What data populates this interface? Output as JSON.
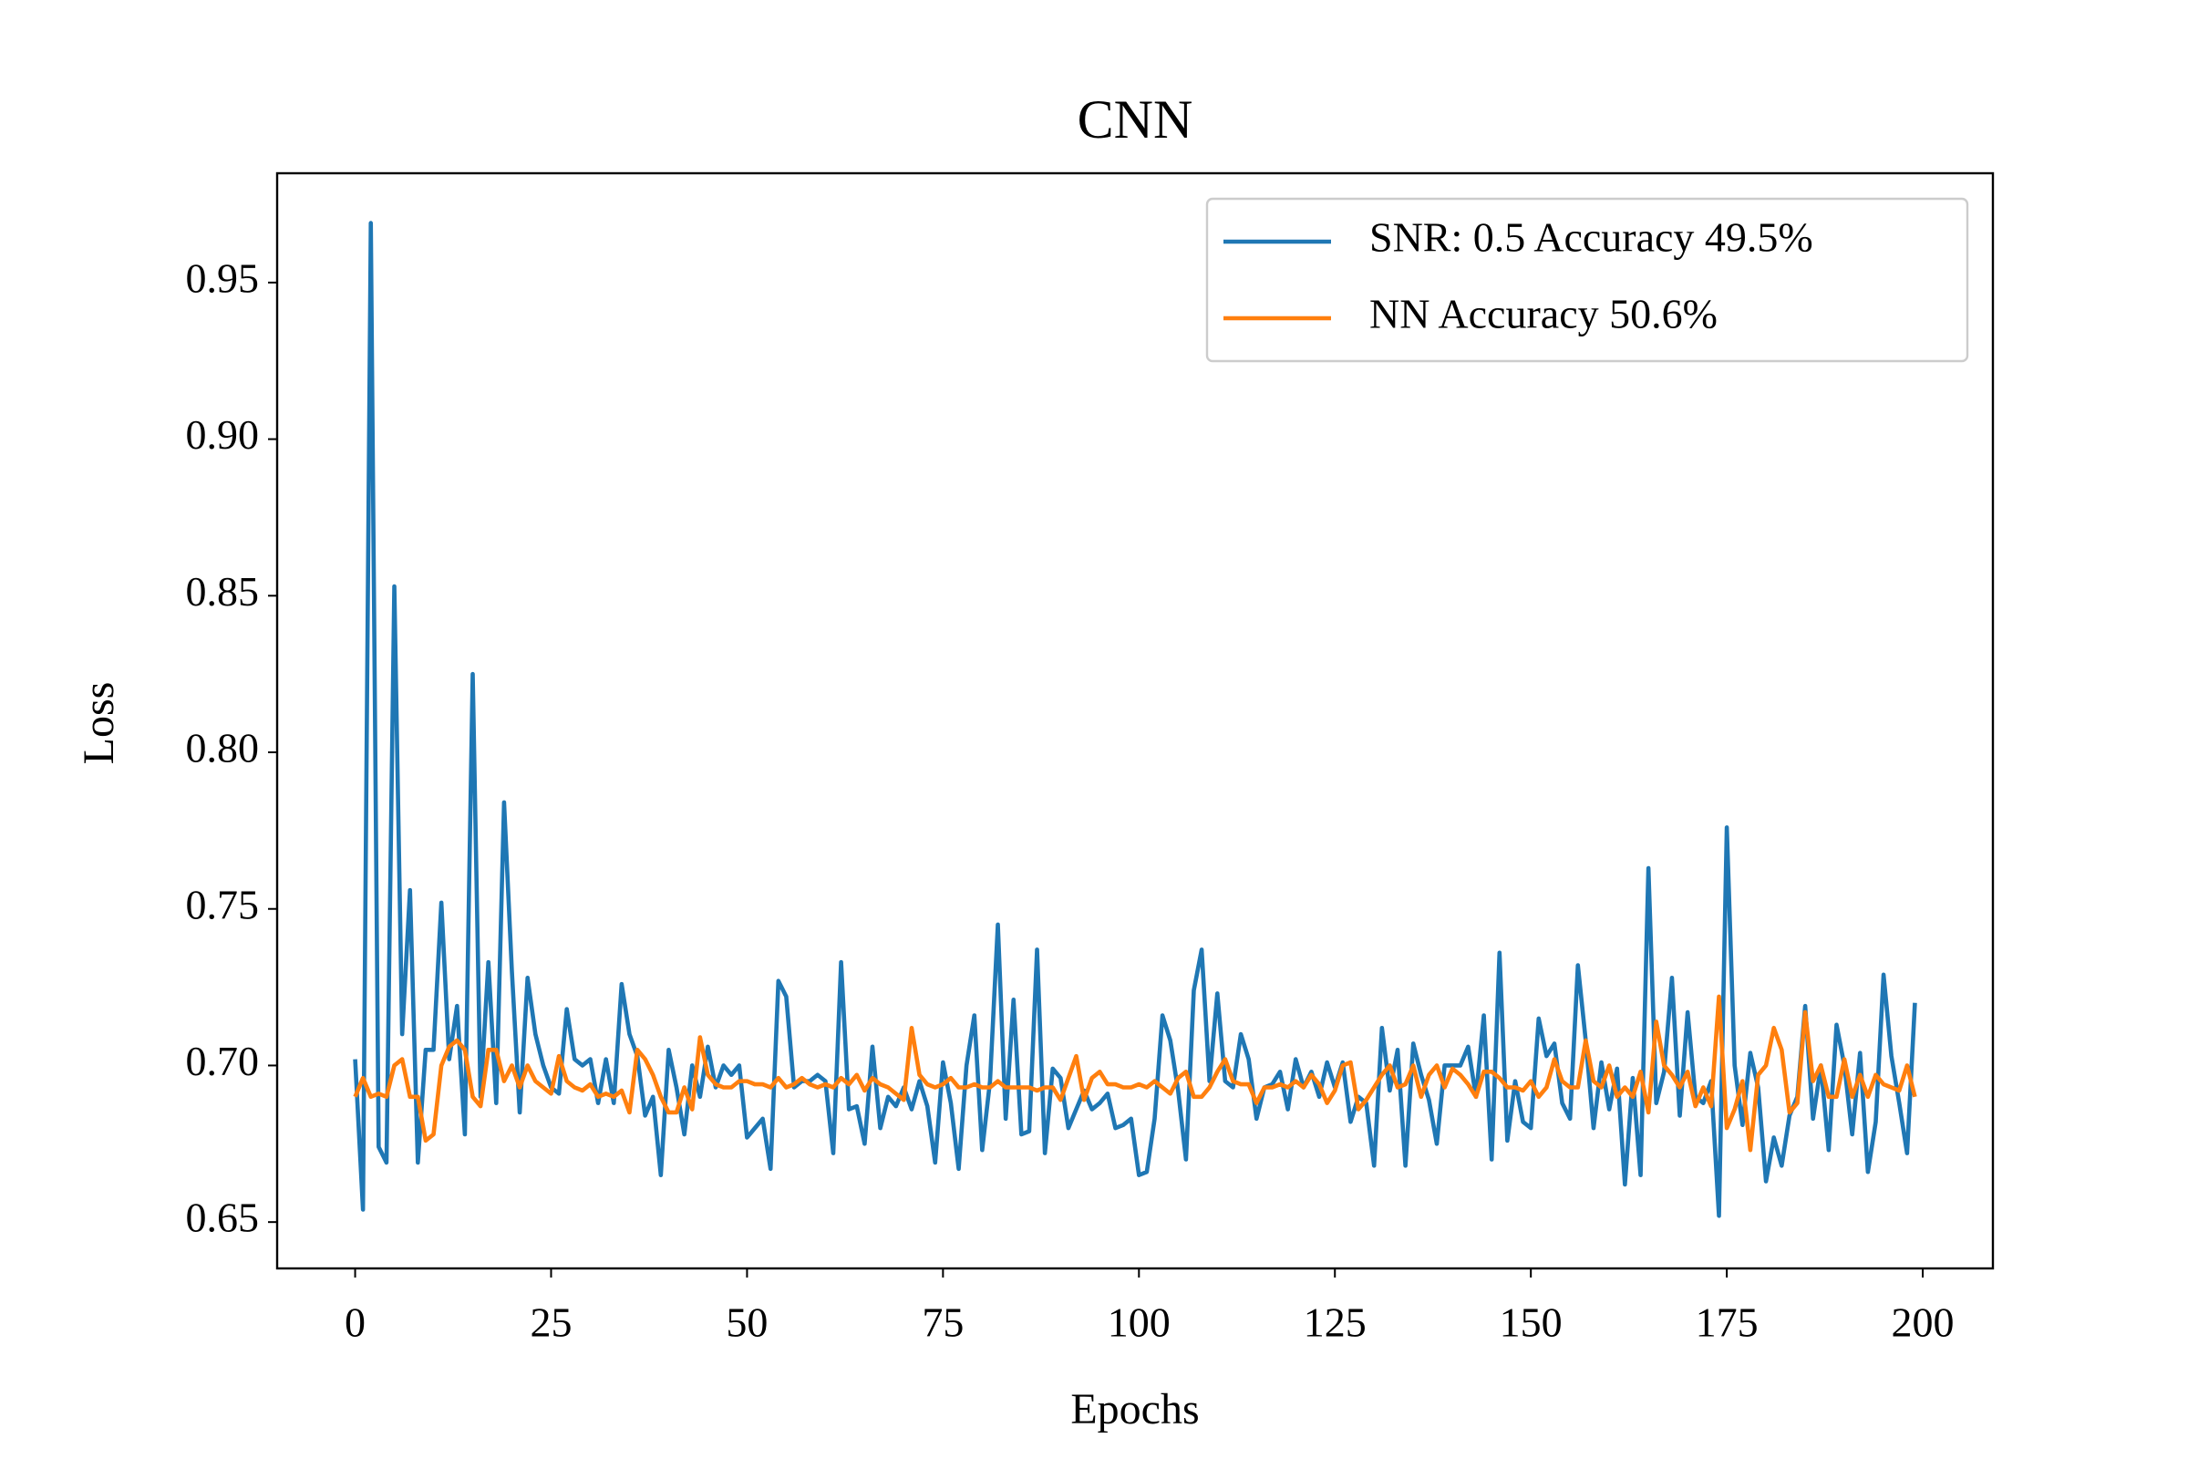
{
  "chart_data": {
    "type": "line",
    "title": "CNN",
    "x_label": "Epochs",
    "y_label": "Loss",
    "x": [
      0,
      1,
      2,
      3,
      4,
      5,
      6,
      7,
      8,
      9,
      10,
      11,
      12,
      13,
      14,
      15,
      16,
      17,
      18,
      19,
      20,
      21,
      22,
      23,
      24,
      25,
      26,
      27,
      28,
      29,
      30,
      31,
      32,
      33,
      34,
      35,
      36,
      37,
      38,
      39,
      40,
      41,
      42,
      43,
      44,
      45,
      46,
      47,
      48,
      49,
      50,
      51,
      52,
      53,
      54,
      55,
      56,
      57,
      58,
      59,
      60,
      61,
      62,
      63,
      64,
      65,
      66,
      67,
      68,
      69,
      70,
      71,
      72,
      73,
      74,
      75,
      76,
      77,
      78,
      79,
      80,
      81,
      82,
      83,
      84,
      85,
      86,
      87,
      88,
      89,
      90,
      91,
      92,
      93,
      94,
      95,
      96,
      97,
      98,
      99,
      100,
      101,
      102,
      103,
      104,
      105,
      106,
      107,
      108,
      109,
      110,
      111,
      112,
      113,
      114,
      115,
      116,
      117,
      118,
      119,
      120,
      121,
      122,
      123,
      124,
      125,
      126,
      127,
      128,
      129,
      130,
      131,
      132,
      133,
      134,
      135,
      136,
      137,
      138,
      139,
      140,
      141,
      142,
      143,
      144,
      145,
      146,
      147,
      148,
      149,
      150,
      151,
      152,
      153,
      154,
      155,
      156,
      157,
      158,
      159,
      160,
      161,
      162,
      163,
      164,
      165,
      166,
      167,
      168,
      169,
      170,
      171,
      172,
      173,
      174,
      175,
      176,
      177,
      178,
      179,
      180,
      181,
      182,
      183,
      184,
      185,
      186,
      187,
      188,
      189,
      190,
      191,
      192,
      193,
      194,
      195,
      196,
      197,
      198,
      199
    ],
    "series": [
      {
        "name": "SNR: 0.5 Accuracy 49.5%",
        "color": "#1f77b4",
        "values": [
          0.702,
          0.654,
          0.969,
          0.674,
          0.669,
          0.853,
          0.71,
          0.756,
          0.669,
          0.705,
          0.705,
          0.752,
          0.702,
          0.719,
          0.678,
          0.825,
          0.69,
          0.733,
          0.688,
          0.784,
          0.73,
          0.685,
          0.728,
          0.71,
          0.7,
          0.693,
          0.691,
          0.718,
          0.702,
          0.7,
          0.702,
          0.688,
          0.702,
          0.688,
          0.726,
          0.71,
          0.703,
          0.684,
          0.69,
          0.665,
          0.705,
          0.693,
          0.678,
          0.7,
          0.69,
          0.706,
          0.693,
          0.7,
          0.697,
          0.7,
          0.677,
          0.68,
          0.683,
          0.667,
          0.727,
          0.722,
          0.693,
          0.695,
          0.695,
          0.697,
          0.695,
          0.672,
          0.733,
          0.686,
          0.687,
          0.675,
          0.706,
          0.68,
          0.69,
          0.687,
          0.693,
          0.686,
          0.695,
          0.687,
          0.669,
          0.701,
          0.688,
          0.667,
          0.7,
          0.716,
          0.673,
          0.695,
          0.745,
          0.683,
          0.721,
          0.678,
          0.679,
          0.737,
          0.672,
          0.699,
          0.696,
          0.68,
          0.686,
          0.692,
          0.686,
          0.688,
          0.691,
          0.68,
          0.681,
          0.683,
          0.665,
          0.666,
          0.683,
          0.716,
          0.708,
          0.692,
          0.67,
          0.724,
          0.737,
          0.695,
          0.723,
          0.695,
          0.693,
          0.71,
          0.702,
          0.683,
          0.693,
          0.694,
          0.698,
          0.686,
          0.702,
          0.693,
          0.698,
          0.69,
          0.701,
          0.693,
          0.701,
          0.682,
          0.69,
          0.688,
          0.668,
          0.712,
          0.692,
          0.705,
          0.668,
          0.707,
          0.697,
          0.689,
          0.675,
          0.7,
          0.7,
          0.7,
          0.706,
          0.69,
          0.716,
          0.67,
          0.736,
          0.676,
          0.695,
          0.682,
          0.68,
          0.715,
          0.703,
          0.707,
          0.688,
          0.683,
          0.732,
          0.708,
          0.68,
          0.701,
          0.686,
          0.699,
          0.662,
          0.696,
          0.665,
          0.763,
          0.688,
          0.698,
          0.728,
          0.684,
          0.717,
          0.69,
          0.688,
          0.695,
          0.652,
          0.776,
          0.7,
          0.681,
          0.704,
          0.693,
          0.663,
          0.677,
          0.668,
          0.684,
          0.69,
          0.719,
          0.683,
          0.7,
          0.673,
          0.713,
          0.7,
          0.678,
          0.704,
          0.666,
          0.682,
          0.729,
          0.703,
          0.688,
          0.672,
          0.72
        ]
      },
      {
        "name": "NN Accuracy 50.6%",
        "color": "#ff7f0e",
        "values": [
          0.69,
          0.696,
          0.69,
          0.691,
          0.69,
          0.7,
          0.702,
          0.69,
          0.69,
          0.676,
          0.678,
          0.7,
          0.706,
          0.708,
          0.705,
          0.69,
          0.687,
          0.705,
          0.705,
          0.695,
          0.7,
          0.693,
          0.7,
          0.695,
          0.693,
          0.691,
          0.703,
          0.695,
          0.693,
          0.692,
          0.694,
          0.69,
          0.691,
          0.69,
          0.692,
          0.685,
          0.705,
          0.702,
          0.697,
          0.69,
          0.685,
          0.685,
          0.693,
          0.686,
          0.709,
          0.697,
          0.694,
          0.693,
          0.693,
          0.695,
          0.695,
          0.694,
          0.694,
          0.693,
          0.696,
          0.693,
          0.694,
          0.696,
          0.694,
          0.693,
          0.694,
          0.693,
          0.696,
          0.694,
          0.697,
          0.692,
          0.696,
          0.694,
          0.693,
          0.691,
          0.689,
          0.712,
          0.697,
          0.694,
          0.693,
          0.694,
          0.696,
          0.693,
          0.693,
          0.694,
          0.693,
          0.693,
          0.695,
          0.693,
          0.693,
          0.693,
          0.693,
          0.692,
          0.693,
          0.693,
          0.689,
          0.696,
          0.703,
          0.689,
          0.696,
          0.698,
          0.694,
          0.694,
          0.693,
          0.693,
          0.694,
          0.693,
          0.695,
          0.693,
          0.691,
          0.696,
          0.698,
          0.69,
          0.69,
          0.693,
          0.698,
          0.702,
          0.695,
          0.694,
          0.694,
          0.688,
          0.693,
          0.693,
          0.694,
          0.693,
          0.695,
          0.693,
          0.697,
          0.694,
          0.688,
          0.692,
          0.7,
          0.701,
          0.686,
          0.689,
          0.693,
          0.697,
          0.7,
          0.693,
          0.694,
          0.7,
          0.69,
          0.697,
          0.7,
          0.693,
          0.699,
          0.697,
          0.694,
          0.69,
          0.698,
          0.698,
          0.696,
          0.693,
          0.693,
          0.692,
          0.695,
          0.69,
          0.693,
          0.702,
          0.695,
          0.693,
          0.693,
          0.708,
          0.695,
          0.693,
          0.7,
          0.69,
          0.693,
          0.69,
          0.698,
          0.685,
          0.714,
          0.7,
          0.697,
          0.693,
          0.698,
          0.687,
          0.693,
          0.687,
          0.722,
          0.68,
          0.686,
          0.695,
          0.673,
          0.697,
          0.7,
          0.712,
          0.705,
          0.685,
          0.688,
          0.717,
          0.695,
          0.7,
          0.69,
          0.69,
          0.702,
          0.69,
          0.697,
          0.69,
          0.697,
          0.694,
          0.693,
          0.692,
          0.7,
          0.69
        ]
      }
    ],
    "xlim": [
      -9.95,
      208.95
    ],
    "xticks": [
      0,
      25,
      50,
      75,
      100,
      125,
      150,
      175,
      200
    ],
    "ylim": [
      0.6352,
      0.9849
    ],
    "yticks": [
      0.65,
      {
        "value": 0.7,
        "label": "0.70"
      },
      0.75,
      {
        "value": 0.8,
        "label": "0.80"
      },
      0.85,
      {
        "value": 0.9,
        "label": "0.90"
      },
      0.95
    ],
    "legend": "upper right",
    "grid": false
  }
}
